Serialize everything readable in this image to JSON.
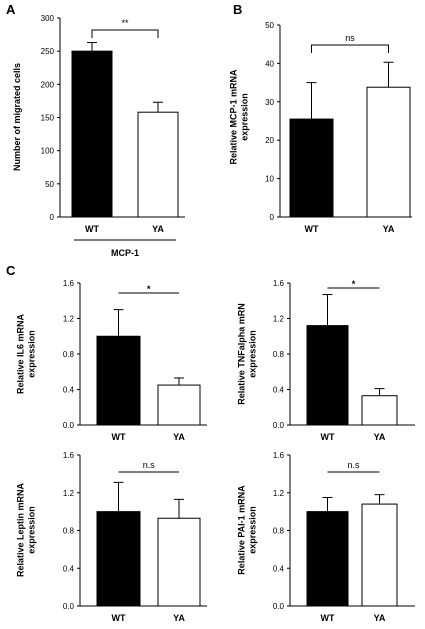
{
  "figure": {
    "panel_labels": [
      "A",
      "B",
      "C"
    ],
    "colors": {
      "wt_fill": "#000000",
      "ya_fill": "#ffffff",
      "stroke": "#000000"
    }
  },
  "chart_data": [
    {
      "id": "A",
      "type": "bar",
      "panel_letter": "A",
      "categories": [
        "WT",
        "YA"
      ],
      "values": [
        250,
        158
      ],
      "errors": [
        13,
        15
      ],
      "ylabel_lines": [
        "Number of migrated cells"
      ],
      "ylim": [
        0,
        300
      ],
      "yticks": [
        "0",
        "50",
        "100",
        "150",
        "200",
        "250",
        "300"
      ],
      "significance": "**",
      "group_label": "MCP-1",
      "grid": false
    },
    {
      "id": "B",
      "type": "bar",
      "panel_letter": "B",
      "categories": [
        "WT",
        "YA"
      ],
      "values": [
        25.5,
        33.8
      ],
      "errors": [
        9.5,
        6.5
      ],
      "ylabel_lines": [
        "Relative MCP-1  mRNA",
        "expression"
      ],
      "ylim": [
        0,
        50
      ],
      "yticks": [
        "0",
        "10",
        "20",
        "30",
        "40",
        "50"
      ],
      "significance": "ns",
      "grid": false
    },
    {
      "id": "C1",
      "type": "bar",
      "panel_letter": "C",
      "categories": [
        "WT",
        "YA"
      ],
      "values": [
        1.0,
        0.45
      ],
      "errors": [
        0.3,
        0.08
      ],
      "ylabel_lines": [
        "Relative IL6 mRNA",
        "expression"
      ],
      "ylim": [
        0,
        1.6
      ],
      "yticks": [
        "0.0",
        "0.4",
        "0.8",
        "1.2",
        "1.6"
      ],
      "significance": "*",
      "grid": false
    },
    {
      "id": "C2",
      "type": "bar",
      "categories": [
        "WT",
        "YA"
      ],
      "values": [
        1.12,
        0.33
      ],
      "errors": [
        0.35,
        0.08
      ],
      "ylabel_lines": [
        "Relative TNFalpha mRN",
        "expression"
      ],
      "ylim": [
        0,
        1.6
      ],
      "yticks": [
        "0.0",
        "0.4",
        "0.8",
        "1.2",
        "1.6"
      ],
      "significance": "*",
      "grid": false
    },
    {
      "id": "C3",
      "type": "bar",
      "categories": [
        "WT",
        "YA"
      ],
      "values": [
        1.0,
        0.93
      ],
      "errors": [
        0.31,
        0.2
      ],
      "ylabel_lines": [
        "Relative Leptin mRNA",
        "expression"
      ],
      "ylim": [
        0,
        1.6
      ],
      "yticks": [
        "0.0",
        "0.4",
        "0.8",
        "1.2",
        "1.6"
      ],
      "significance": "n.s",
      "grid": false
    },
    {
      "id": "C4",
      "type": "bar",
      "categories": [
        "WT",
        "YA"
      ],
      "values": [
        1.0,
        1.08
      ],
      "errors": [
        0.15,
        0.1
      ],
      "ylabel_lines": [
        "Relative PAI-1 mRNA",
        "expression"
      ],
      "ylim": [
        0,
        1.6
      ],
      "yticks": [
        "0.0",
        "0.4",
        "0.8",
        "1.2",
        "1.6"
      ],
      "significance": "n.s",
      "grid": false
    }
  ]
}
